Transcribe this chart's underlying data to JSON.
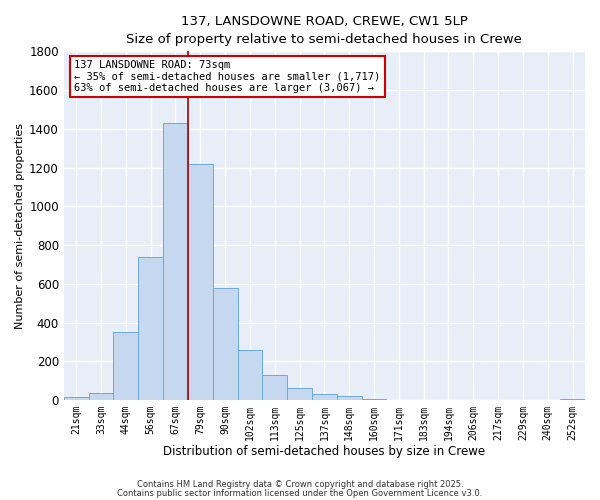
{
  "title_line1": "137, LANSDOWNE ROAD, CREWE, CW1 5LP",
  "title_line2": "Size of property relative to semi-detached houses in Crewe",
  "xlabel": "Distribution of semi-detached houses by size in Crewe",
  "ylabel": "Number of semi-detached properties",
  "bar_labels": [
    "21sqm",
    "33sqm",
    "44sqm",
    "56sqm",
    "67sqm",
    "79sqm",
    "90sqm",
    "102sqm",
    "113sqm",
    "125sqm",
    "137sqm",
    "148sqm",
    "160sqm",
    "171sqm",
    "183sqm",
    "194sqm",
    "206sqm",
    "217sqm",
    "229sqm",
    "240sqm",
    "252sqm"
  ],
  "bar_values": [
    15,
    35,
    350,
    740,
    1430,
    1220,
    580,
    260,
    130,
    65,
    30,
    20,
    5,
    3,
    2,
    1,
    1,
    0,
    1,
    0,
    5
  ],
  "bar_color": "#c5d8f0",
  "bar_edge_color": "#6baad8",
  "vline_x_index": 4,
  "vline_color": "#aa0000",
  "annotation_title": "137 LANSDOWNE ROAD: 73sqm",
  "annotation_line2": "← 35% of semi-detached houses are smaller (1,717)",
  "annotation_line3": "63% of semi-detached houses are larger (3,067) →",
  "annotation_box_edgecolor": "#cc0000",
  "ylim": [
    0,
    1800
  ],
  "yticks": [
    0,
    200,
    400,
    600,
    800,
    1000,
    1200,
    1400,
    1600,
    1800
  ],
  "footer_line1": "Contains HM Land Registry data © Crown copyright and database right 2025.",
  "footer_line2": "Contains public sector information licensed under the Open Government Licence v3.0.",
  "plot_bg_color": "#e8eef8",
  "fig_bg_color": "#ffffff",
  "grid_color": "#ffffff"
}
